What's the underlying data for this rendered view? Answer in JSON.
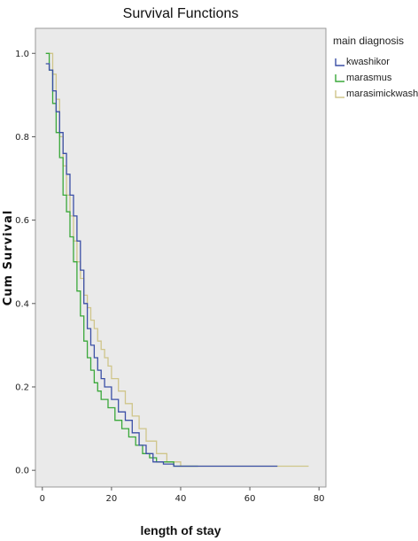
{
  "chart_data": {
    "type": "line",
    "step": true,
    "title": "Survival Functions",
    "xlabel": "length of stay",
    "ylabel": "Cum Survival",
    "xlim": [
      -2,
      82
    ],
    "ylim": [
      -0.04,
      1.06
    ],
    "xticks": [
      "0",
      "20",
      "40",
      "60",
      "80"
    ],
    "yticks": [
      "0.0",
      "0.2",
      "0.4",
      "0.6",
      "0.8",
      "1.0"
    ],
    "grid": false,
    "background": "#eaeaea",
    "legend": {
      "title": "main diagnosis",
      "placement": "right",
      "entries": [
        "kwashikor",
        "marasmus",
        "marasimickwash"
      ]
    },
    "series": [
      {
        "name": "kwashikor",
        "color": "#3b4fa6",
        "x": [
          1,
          2,
          3,
          4,
          5,
          6,
          7,
          8,
          9,
          10,
          11,
          12,
          13,
          14,
          15,
          16,
          17,
          18,
          20,
          22,
          24,
          26,
          28,
          30,
          32,
          35,
          38,
          45,
          68
        ],
        "y": [
          0.975,
          0.96,
          0.91,
          0.86,
          0.81,
          0.76,
          0.71,
          0.66,
          0.61,
          0.55,
          0.48,
          0.4,
          0.34,
          0.3,
          0.27,
          0.24,
          0.22,
          0.2,
          0.17,
          0.14,
          0.12,
          0.09,
          0.06,
          0.04,
          0.02,
          0.015,
          0.01,
          0.01,
          0.01
        ]
      },
      {
        "name": "marasmus",
        "color": "#3aa83a",
        "x": [
          1,
          2,
          3,
          4,
          5,
          6,
          7,
          8,
          9,
          10,
          11,
          12,
          13,
          14,
          15,
          16,
          17,
          19,
          21,
          23,
          25,
          27,
          29,
          31,
          33,
          38,
          45
        ],
        "y": [
          1.0,
          0.96,
          0.88,
          0.81,
          0.75,
          0.66,
          0.62,
          0.56,
          0.5,
          0.43,
          0.37,
          0.31,
          0.27,
          0.24,
          0.21,
          0.19,
          0.17,
          0.15,
          0.12,
          0.1,
          0.08,
          0.06,
          0.04,
          0.03,
          0.02,
          0.01,
          0.01
        ]
      },
      {
        "name": "marasimickwash",
        "color": "#cfc58a",
        "x": [
          2,
          3,
          4,
          5,
          6,
          7,
          8,
          9,
          10,
          11,
          12,
          13,
          14,
          15,
          16,
          17,
          18,
          19,
          20,
          22,
          24,
          26,
          28,
          30,
          33,
          36,
          40,
          77
        ],
        "y": [
          1.0,
          0.95,
          0.89,
          0.8,
          0.73,
          0.66,
          0.61,
          0.55,
          0.5,
          0.46,
          0.42,
          0.39,
          0.36,
          0.34,
          0.31,
          0.29,
          0.27,
          0.25,
          0.22,
          0.19,
          0.16,
          0.13,
          0.1,
          0.07,
          0.04,
          0.02,
          0.01,
          0.01
        ]
      }
    ]
  }
}
